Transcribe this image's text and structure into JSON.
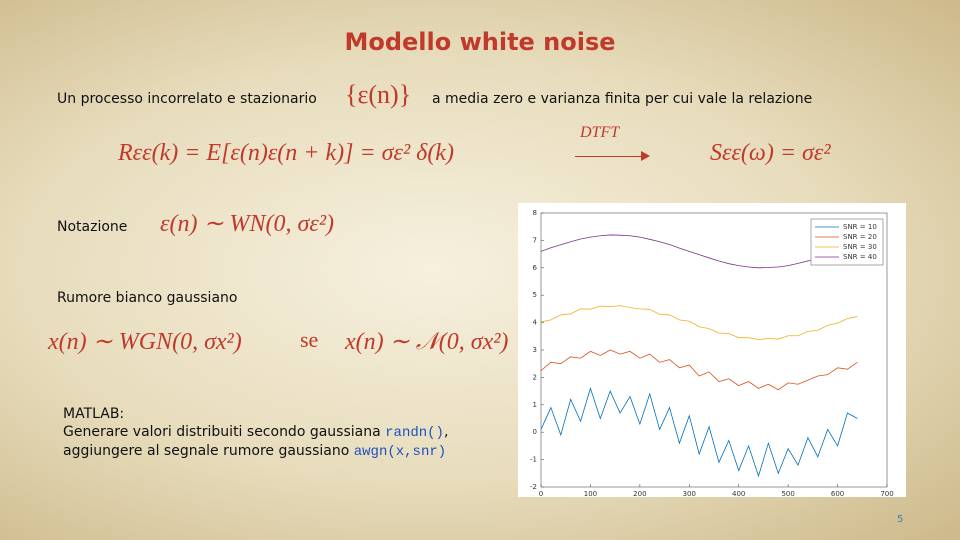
{
  "title": "Modello white noise",
  "intro": {
    "text": "Un processo incorrelato e stazionario",
    "formula": "{ε(n)}",
    "text2": "a media zero e varianza finita per cui vale la relazione"
  },
  "relation": {
    "lhs": "Rεε(k) = E[ε(n)ε(n + k)] = σε² δ(k)",
    "transform": "DTFT",
    "rhs": "Sεε(ω) = σε²"
  },
  "notation": {
    "label": "Notazione",
    "formula": "ε(n) ∼ WN(0, σε²)"
  },
  "gaussian": {
    "label": "Rumore bianco gaussiano",
    "formula1": "x(n) ∼ WGN(0, σx²)",
    "connector": "se",
    "formula2": "x(n) ∼ 𝒩(0, σx²)"
  },
  "matlab": {
    "line1": "MATLAB:",
    "line2": "Generare valori distribuiti secondo gaussiana",
    "code1": "randn()",
    "sep": ",",
    "line3": "aggiungere al segnale rumore gaussiano",
    "code2": "awgn(x,snr)"
  },
  "page_number": "5",
  "chart_data": {
    "type": "line",
    "x": [
      0,
      20,
      40,
      60,
      80,
      100,
      120,
      140,
      160,
      180,
      200,
      220,
      240,
      260,
      280,
      300,
      320,
      340,
      360,
      380,
      400,
      420,
      440,
      460,
      480,
      500,
      520,
      540,
      560,
      580,
      600,
      620,
      640
    ],
    "series": [
      {
        "name": "SNR = 10",
        "color": "#0072bd",
        "values": [
          0.1,
          0.9,
          -0.1,
          1.2,
          0.4,
          1.6,
          0.5,
          1.5,
          0.7,
          1.3,
          0.3,
          1.4,
          0.1,
          0.9,
          -0.4,
          0.6,
          -0.8,
          0.2,
          -1.1,
          -0.3,
          -1.4,
          -0.5,
          -1.6,
          -0.4,
          -1.5,
          -0.6,
          -1.2,
          -0.2,
          -0.9,
          0.1,
          -0.5,
          0.7,
          0.5
        ]
      },
      {
        "name": "SNR = 20",
        "color": "#d95319",
        "values": [
          2.25,
          2.55,
          2.5,
          2.75,
          2.7,
          2.95,
          2.8,
          3.0,
          2.85,
          2.95,
          2.7,
          2.85,
          2.55,
          2.65,
          2.35,
          2.45,
          2.05,
          2.2,
          1.85,
          1.95,
          1.7,
          1.85,
          1.6,
          1.75,
          1.55,
          1.8,
          1.75,
          1.9,
          2.05,
          2.1,
          2.35,
          2.3,
          2.55
        ]
      },
      {
        "name": "SNR = 30",
        "color": "#edb120",
        "values": [
          4.02,
          4.1,
          4.28,
          4.32,
          4.5,
          4.49,
          4.6,
          4.58,
          4.62,
          4.55,
          4.5,
          4.48,
          4.3,
          4.28,
          4.1,
          4.05,
          3.85,
          3.78,
          3.62,
          3.6,
          3.45,
          3.45,
          3.38,
          3.42,
          3.4,
          3.52,
          3.52,
          3.68,
          3.72,
          3.9,
          3.98,
          4.15,
          4.22
        ]
      },
      {
        "name": "SNR = 40",
        "color": "#7e2f8e",
        "values": [
          6.6,
          6.73,
          6.84,
          6.95,
          7.05,
          7.12,
          7.17,
          7.2,
          7.19,
          7.17,
          7.12,
          7.04,
          6.95,
          6.85,
          6.72,
          6.6,
          6.48,
          6.36,
          6.25,
          6.15,
          6.08,
          6.03,
          6.0,
          6.01,
          6.03,
          6.08,
          6.16,
          6.25,
          6.35,
          6.47,
          6.6,
          6.72,
          6.85
        ]
      }
    ],
    "xlim": [
      0,
      700
    ],
    "xticks": [
      0,
      100,
      200,
      300,
      400,
      500,
      600,
      700
    ],
    "ylim": [
      -2,
      8
    ],
    "yticks": [
      -2,
      -1,
      0,
      1,
      2,
      3,
      4,
      5,
      6,
      7,
      8
    ],
    "legend": "upper-right"
  }
}
